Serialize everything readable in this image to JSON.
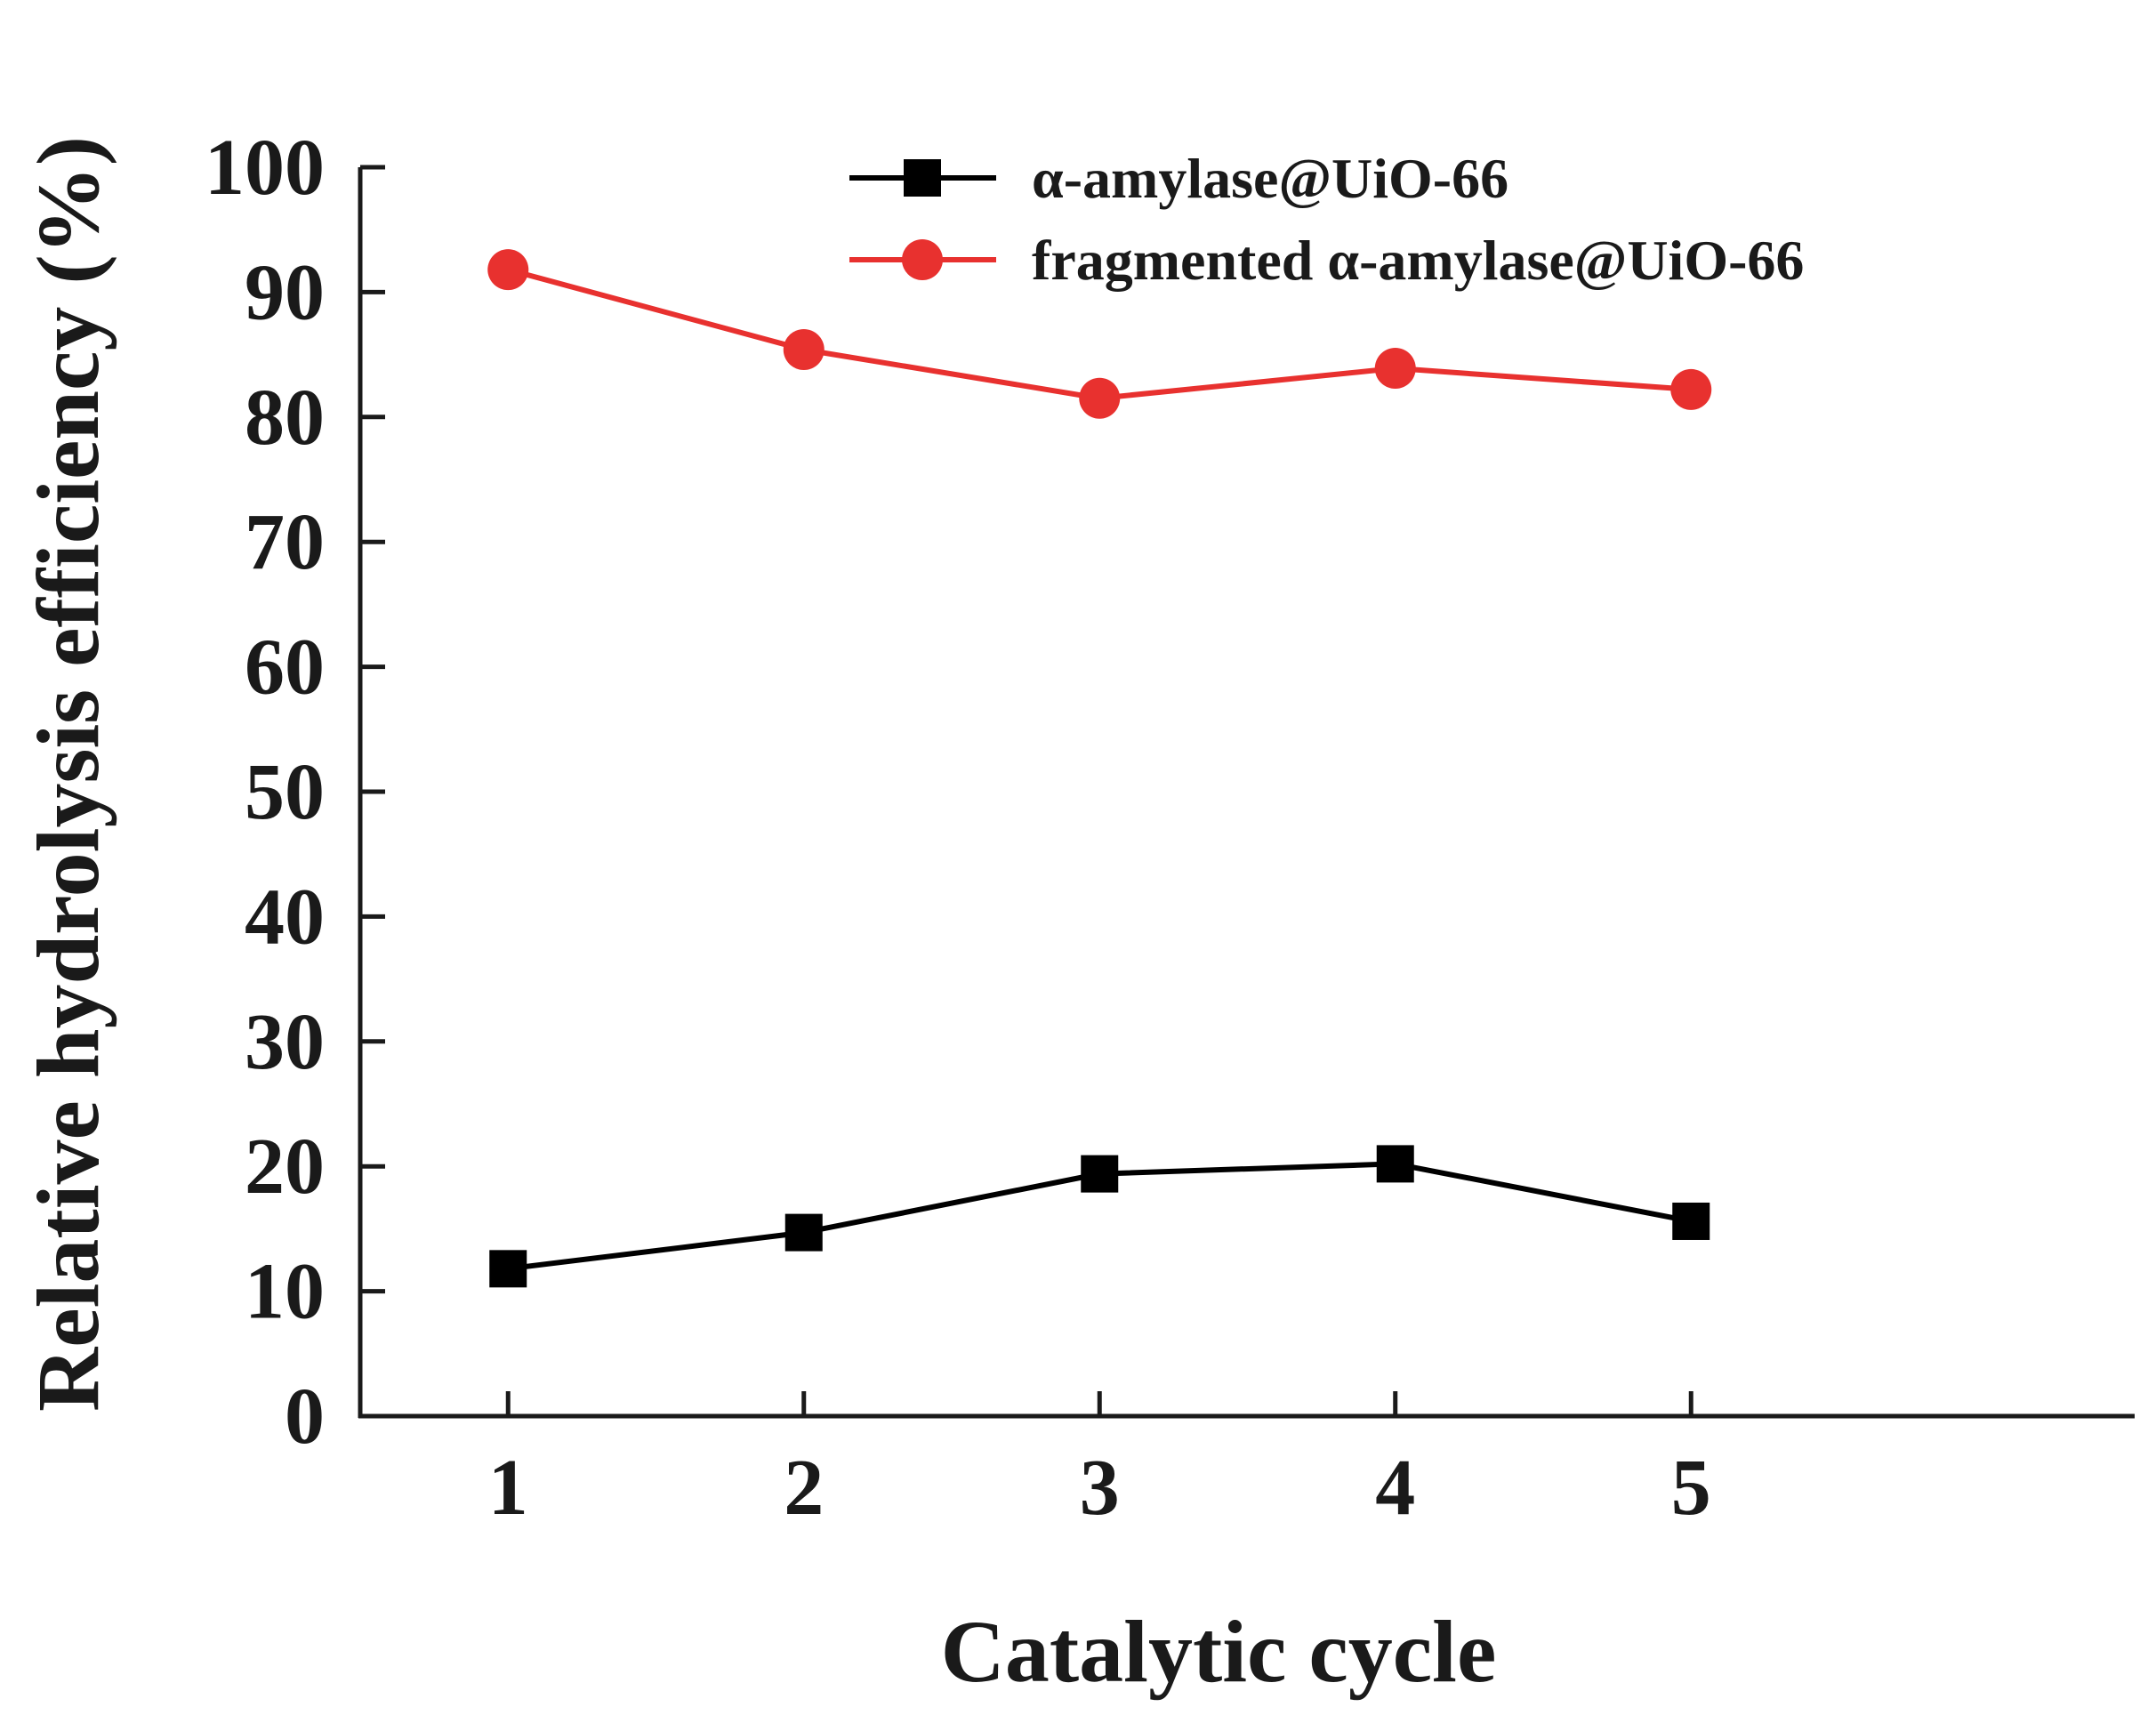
{
  "chart_data": {
    "type": "line",
    "title": "",
    "xlabel": "Catalytic cycle",
    "ylabel": "Relative hydrolysis efficiency (%)",
    "categories": [
      "1",
      "2",
      "3",
      "4",
      "5"
    ],
    "x": [
      1,
      2,
      3,
      4,
      5
    ],
    "xlim": [
      0.5,
      6.5
    ],
    "ylim": [
      0,
      100
    ],
    "yticks": [
      0,
      10,
      20,
      30,
      40,
      50,
      60,
      70,
      80,
      90,
      100
    ],
    "grid": false,
    "legend_position": "top-center",
    "series": [
      {
        "name": "α-amylase@UiO-66",
        "color": "#000000",
        "marker": "square",
        "values": [
          11.8,
          14.7,
          19.4,
          20.2,
          15.6
        ]
      },
      {
        "name": "fragmented α-amylase@UiO-66",
        "color": "#e8312f",
        "marker": "circle",
        "values": [
          91.8,
          85.4,
          81.5,
          83.9,
          82.2
        ]
      }
    ]
  }
}
